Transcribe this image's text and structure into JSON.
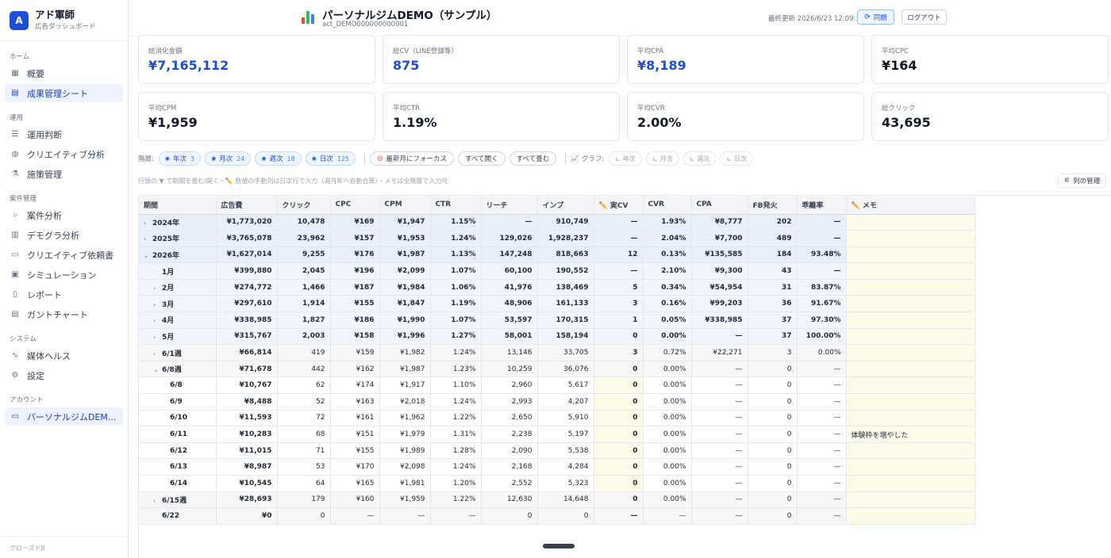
{
  "sidebar": {
    "brand_logo": "A",
    "brand_name": "アド軍師",
    "brand_sub": "広告ダッシュボード",
    "sections": [
      {
        "title": "ホーム",
        "items": [
          {
            "label": "概要",
            "icon": "grid-icon",
            "glyph": "▦",
            "active": false
          },
          {
            "label": "成果管理シート",
            "icon": "table-icon",
            "glyph": "▤",
            "active": true
          }
        ]
      },
      {
        "title": "運用",
        "items": [
          {
            "label": "運用判断",
            "icon": "list-check-icon",
            "glyph": "☰",
            "active": false
          },
          {
            "label": "クリエイティブ分析",
            "icon": "palette-icon",
            "glyph": "◍",
            "active": false
          },
          {
            "label": "施策管理",
            "icon": "flask-icon",
            "glyph": "⚗",
            "active": false
          }
        ]
      },
      {
        "title": "案件管理",
        "items": [
          {
            "label": "案件分析",
            "icon": "search-icon",
            "glyph": "⌕",
            "active": false
          },
          {
            "label": "デモグラ分析",
            "icon": "bar-chart-icon",
            "glyph": "▥",
            "active": false
          },
          {
            "label": "クリエイティブ依頼書",
            "icon": "folder-icon",
            "glyph": "▭",
            "active": false
          },
          {
            "label": "シミュレーション",
            "icon": "calculator-icon",
            "glyph": "▣",
            "active": false
          },
          {
            "label": "レポート",
            "icon": "document-icon",
            "glyph": "▯",
            "active": false
          },
          {
            "label": "ガントチャート",
            "icon": "gantt-icon",
            "glyph": "▤",
            "active": false
          }
        ]
      },
      {
        "title": "システム",
        "items": [
          {
            "label": "媒体ヘルス",
            "icon": "pulse-icon",
            "glyph": "∿",
            "active": false
          },
          {
            "label": "設定",
            "icon": "gear-icon",
            "glyph": "⚙",
            "active": false
          }
        ]
      },
      {
        "title": "アカウント",
        "items": [
          {
            "label": "パーソナルジムDEM...",
            "icon": "folder-icon",
            "glyph": "▭",
            "active": true
          }
        ]
      }
    ],
    "footer": "クローズドβ"
  },
  "header": {
    "title": "パーソナルジムDEMO（サンプル）",
    "account_id": "act_DEMO000000000001",
    "last_update": "最終更新 2026/6/23 12:09:19",
    "sync_label": "同期",
    "logout_label": "ログアウト"
  },
  "cards": [
    {
      "label": "総消化金額",
      "value": "¥7,165,112",
      "blue": true
    },
    {
      "label": "総CV（LINE登録等）",
      "value": "875",
      "blue": true
    },
    {
      "label": "平均CPA",
      "value": "¥8,189",
      "blue": true
    },
    {
      "label": "平均CPC",
      "value": "¥164",
      "blue": false
    },
    {
      "label": "平均CPM",
      "value": "¥1,959",
      "blue": false
    },
    {
      "label": "平均CTR",
      "value": "1.19%",
      "blue": false
    },
    {
      "label": "平均CVR",
      "value": "2.00%",
      "blue": false
    },
    {
      "label": "総クリック",
      "value": "43,695",
      "blue": false
    }
  ],
  "toolbar": {
    "level_label": "階層:",
    "levels": [
      {
        "label": "年次",
        "count": "3"
      },
      {
        "label": "月次",
        "count": "24"
      },
      {
        "label": "週次",
        "count": "18"
      },
      {
        "label": "日次",
        "count": "125"
      }
    ],
    "focus_label": "最新月にフォーカス",
    "expand_all": "すべて開く",
    "collapse_all": "すべて畳む",
    "graph_label": "グラフ:",
    "graph_buttons": [
      "年次",
      "月次",
      "週次",
      "日次"
    ]
  },
  "hint": "行頭の ▼ で期間を畳む/開く・✏️ 数値の手動列は日次行で入力（週月年へ自動合算）・メモは全階層で入力可",
  "column_manage": "列の管理",
  "table": {
    "columns": [
      "期間",
      "広告費",
      "クリック",
      "CPC",
      "CPM",
      "CTR",
      "リーチ",
      "インプ",
      "✏️ 実CV",
      "CVR",
      "CPA",
      "FB発火",
      "乖離率",
      "✏️ メモ"
    ],
    "rows": [
      {
        "level": "year",
        "caret": "›",
        "cells": [
          "2024年",
          "¥1,773,020",
          "10,478",
          "¥169",
          "¥1,947",
          "1.15%",
          "—",
          "910,749",
          "—",
          "1.93%",
          "¥8,777",
          "202",
          "—",
          ""
        ]
      },
      {
        "level": "year",
        "caret": "›",
        "cells": [
          "2025年",
          "¥3,765,078",
          "23,962",
          "¥157",
          "¥1,953",
          "1.24%",
          "129,026",
          "1,928,237",
          "—",
          "2.04%",
          "¥7,700",
          "489",
          "—",
          ""
        ]
      },
      {
        "level": "year",
        "caret": "⌄",
        "cells": [
          "2026年",
          "¥1,627,014",
          "9,255",
          "¥176",
          "¥1,987",
          "1.13%",
          "147,248",
          "818,663",
          "12",
          "0.13%",
          "¥135,585",
          "184",
          "93.48%",
          ""
        ]
      },
      {
        "level": "month",
        "caret": "",
        "cells": [
          "1月",
          "¥399,880",
          "2,045",
          "¥196",
          "¥2,099",
          "1.07%",
          "60,100",
          "190,552",
          "—",
          "2.10%",
          "¥9,300",
          "43",
          "—",
          ""
        ]
      },
      {
        "level": "month",
        "caret": "›",
        "cells": [
          "2月",
          "¥274,772",
          "1,466",
          "¥187",
          "¥1,984",
          "1.06%",
          "41,976",
          "138,469",
          "5",
          "0.34%",
          "¥54,954",
          "31",
          "83.87%",
          ""
        ]
      },
      {
        "level": "month",
        "caret": "›",
        "cells": [
          "3月",
          "¥297,610",
          "1,914",
          "¥155",
          "¥1,847",
          "1.19%",
          "48,906",
          "161,133",
          "3",
          "0.16%",
          "¥99,203",
          "36",
          "91.67%",
          ""
        ]
      },
      {
        "level": "month",
        "caret": "›",
        "cells": [
          "4月",
          "¥338,985",
          "1,827",
          "¥186",
          "¥1,990",
          "1.07%",
          "53,597",
          "170,315",
          "1",
          "0.05%",
          "¥338,985",
          "37",
          "97.30%",
          ""
        ]
      },
      {
        "level": "month",
        "caret": "›",
        "cells": [
          "5月",
          "¥315,767",
          "2,003",
          "¥158",
          "¥1,996",
          "1.27%",
          "58,001",
          "158,194",
          "0",
          "0.00%",
          "—",
          "37",
          "100.00%",
          ""
        ]
      },
      {
        "level": "week",
        "caret": "›",
        "cells": [
          "6/1週",
          "¥66,814",
          "419",
          "¥159",
          "¥1,982",
          "1.24%",
          "13,146",
          "33,705",
          "3",
          "0.72%",
          "¥22,271",
          "3",
          "0.00%",
          ""
        ]
      },
      {
        "level": "week",
        "caret": "⌄",
        "cells": [
          "6/8週",
          "¥71,678",
          "442",
          "¥162",
          "¥1,987",
          "1.23%",
          "10,259",
          "36,076",
          "0",
          "0.00%",
          "—",
          "0",
          "—",
          ""
        ]
      },
      {
        "level": "day",
        "caret": "",
        "cells": [
          "6/8",
          "¥10,767",
          "62",
          "¥174",
          "¥1,917",
          "1.10%",
          "2,960",
          "5,617",
          "0",
          "0.00%",
          "—",
          "0",
          "—",
          ""
        ]
      },
      {
        "level": "day",
        "caret": "",
        "cells": [
          "6/9",
          "¥8,488",
          "52",
          "¥163",
          "¥2,018",
          "1.24%",
          "2,993",
          "4,207",
          "0",
          "0.00%",
          "—",
          "0",
          "—",
          ""
        ]
      },
      {
        "level": "day",
        "caret": "",
        "cells": [
          "6/10",
          "¥11,593",
          "72",
          "¥161",
          "¥1,962",
          "1.22%",
          "2,650",
          "5,910",
          "0",
          "0.00%",
          "—",
          "0",
          "—",
          ""
        ]
      },
      {
        "level": "day",
        "caret": "",
        "cells": [
          "6/11",
          "¥10,283",
          "68",
          "¥151",
          "¥1,979",
          "1.31%",
          "2,238",
          "5,197",
          "0",
          "0.00%",
          "—",
          "0",
          "—",
          "体験枠を増やした"
        ]
      },
      {
        "level": "day",
        "caret": "",
        "cells": [
          "6/12",
          "¥11,015",
          "71",
          "¥155",
          "¥1,989",
          "1.28%",
          "2,090",
          "5,538",
          "0",
          "0.00%",
          "—",
          "0",
          "—",
          ""
        ]
      },
      {
        "level": "day",
        "caret": "",
        "cells": [
          "6/13",
          "¥8,987",
          "53",
          "¥170",
          "¥2,098",
          "1.24%",
          "2,168",
          "4,284",
          "0",
          "0.00%",
          "—",
          "0",
          "—",
          ""
        ]
      },
      {
        "level": "day",
        "caret": "",
        "cells": [
          "6/14",
          "¥10,545",
          "64",
          "¥165",
          "¥1,981",
          "1.20%",
          "2,552",
          "5,323",
          "0",
          "0.00%",
          "—",
          "0",
          "—",
          ""
        ]
      },
      {
        "level": "week",
        "caret": "›",
        "cells": [
          "6/15週",
          "¥28,693",
          "179",
          "¥160",
          "¥1,959",
          "1.22%",
          "12,630",
          "14,648",
          "0",
          "0.00%",
          "—",
          "0",
          "—",
          ""
        ]
      },
      {
        "level": "week",
        "caret": "",
        "cells": [
          "6/22",
          "¥0",
          "0",
          "—",
          "—",
          "—",
          "0",
          "0",
          "—",
          "—",
          "—",
          "0",
          "—",
          ""
        ]
      }
    ]
  }
}
